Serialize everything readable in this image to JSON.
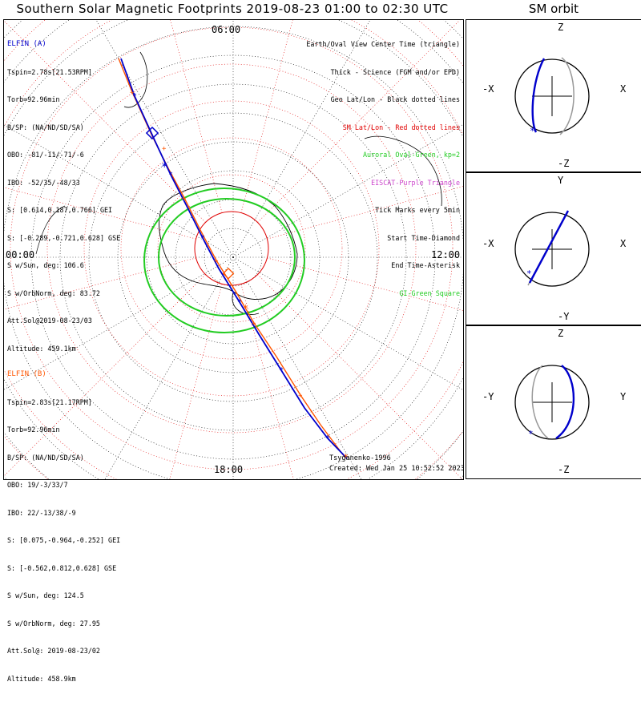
{
  "title": "Southern Solar Magnetic Footprints 2019-08-23 01:00 to 02:30 UTC",
  "sm_orbit_title": "SM orbit",
  "polar": {
    "time_labels": {
      "top": "06:00",
      "left": "00:00",
      "right": "12:00",
      "bottom": "18:00"
    },
    "legend": [
      {
        "text": "Earth/Oval View Center Time (triangle)",
        "color": "#000000"
      },
      {
        "text": "Thick - Science (FGM and/or EPD)",
        "color": "#000000"
      },
      {
        "text": "Geo Lat/Lon - Black dotted lines",
        "color": "#000000"
      },
      {
        "text": "SM Lat/Lon - Red dotted lines",
        "color": "#e00000"
      },
      {
        "text": "Auroral Oval-Green, kp=2",
        "color": "#22cc22"
      },
      {
        "text": "EISCAT-Purple Triangle",
        "color": "#cc44cc"
      },
      {
        "text": "Tick Marks every 5min",
        "color": "#000000"
      },
      {
        "text": "Start Time-Diamond",
        "color": "#000000"
      },
      {
        "text": "End Time-Asterisk",
        "color": "#000000"
      },
      {
        "text": "GI-Green Square",
        "color": "#22cc22"
      }
    ],
    "elfin_a": {
      "name": "ELFIN (A)",
      "color": "#0000cc",
      "lines": [
        "Tspin=2.78s[21.53RPM]",
        "Torb=92.96min",
        "B/SP: (NA/ND/SD/SA)",
        "OBO: -81/-11/-71/-6",
        "IBO: -52/35/-48/33",
        "S: [0.614,0.187,0.766] GEI",
        "S: [-0.289,-0.721,0.628] GSE",
        "S w/Sun, deg: 106.6",
        "S w/OrbNorm, deg: 83.72",
        "Att.Sol@2019-08-23/03",
        "Altitude: 459.1km"
      ]
    },
    "elfin_b": {
      "name": "ELFIN (B)",
      "color": "#ff5500",
      "lines": [
        "Tspin=2.83s[21.17RPM]",
        "Torb=92.96min",
        "B/SP: (NA/ND/SD/SA)",
        "OBO: 19/-3/33/7",
        "IBO: 22/-13/38/-9",
        "S: [0.075,-0.964,-0.252] GEI",
        "S: [-0.562,0.812,0.628] GSE",
        "S w/Sun, deg: 124.5",
        "S w/OrbNorm, deg: 27.95",
        "Att.Sol@: 2019-08-23/02",
        "Altitude: 458.9km"
      ]
    },
    "model": "Tsyganenko-1996",
    "created": "Created: Wed Jan 25 10:52:52 2023"
  },
  "sm_panels": [
    {
      "top": "Z",
      "bottom": "-Z",
      "left": "-X",
      "right": "X"
    },
    {
      "top": "Y",
      "bottom": "-Y",
      "left": "-X",
      "right": "X"
    },
    {
      "top": "Z",
      "bottom": "-Z",
      "left": "-Y",
      "right": "Y"
    }
  ],
  "colors": {
    "elfin_a": "#0000cc",
    "elfin_b": "#ff5500",
    "oval": "#22cc22",
    "sm_grid": "#e00000",
    "geo_grid": "#000000"
  }
}
